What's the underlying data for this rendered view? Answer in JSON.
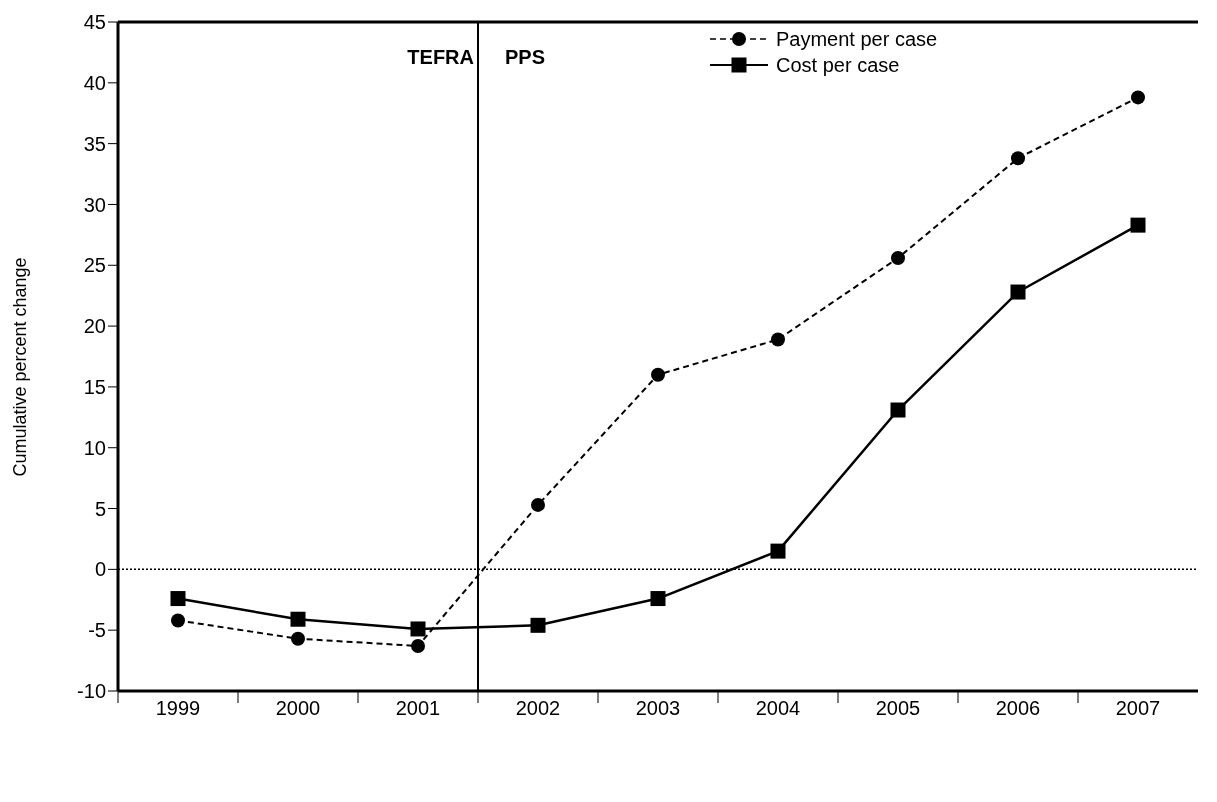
{
  "chart_data": {
    "type": "line",
    "ylabel": "Cumulative percent change",
    "x": [
      1999,
      2000,
      2001,
      2002,
      2003,
      2004,
      2005,
      2006,
      2007
    ],
    "xlim": [
      1998.5,
      2007.5
    ],
    "xticks": [
      1999,
      2000,
      2001,
      2002,
      2003,
      2004,
      2005,
      2006,
      2007,
      {
        "value": 1998.5,
        "label": null
      },
      {
        "value": 1999.5,
        "label": null
      },
      {
        "value": 2000.5,
        "label": null
      },
      {
        "value": 2001.5,
        "label": null
      },
      {
        "value": 2002.5,
        "label": null
      },
      {
        "value": 2003.5,
        "label": null
      },
      {
        "value": 2004.5,
        "label": null
      },
      {
        "value": 2005.5,
        "label": null
      },
      {
        "value": 2006.5,
        "label": null
      }
    ],
    "ylim": [
      -10,
      45
    ],
    "yticks": [
      -10,
      -5,
      0,
      5,
      10,
      15,
      20,
      25,
      30,
      35,
      40,
      45
    ],
    "series": [
      {
        "name": "Payment per case",
        "color": "#000000",
        "marker": "circle",
        "line_style": "dashed",
        "values": [
          -4.2,
          -5.7,
          -6.3,
          5.3,
          16,
          18.9,
          25.6,
          33.8,
          38.8
        ]
      },
      {
        "name": "Cost per case",
        "color": "#000000",
        "marker": "square",
        "line_style": "solid",
        "values": [
          -2.4,
          -4.1,
          -4.9,
          -4.6,
          -2.4,
          1.5,
          13.1,
          22.8,
          28.3
        ]
      }
    ],
    "ref_lines": [
      {
        "axis": "y",
        "value": 0,
        "line_style": "dotted",
        "color": "#000000"
      },
      {
        "axis": "x",
        "value": 2001.5,
        "line_style": "solid",
        "color": "#000000"
      }
    ],
    "annotations": [
      "TEFRA",
      "PPS"
    ],
    "legend": "top right"
  }
}
